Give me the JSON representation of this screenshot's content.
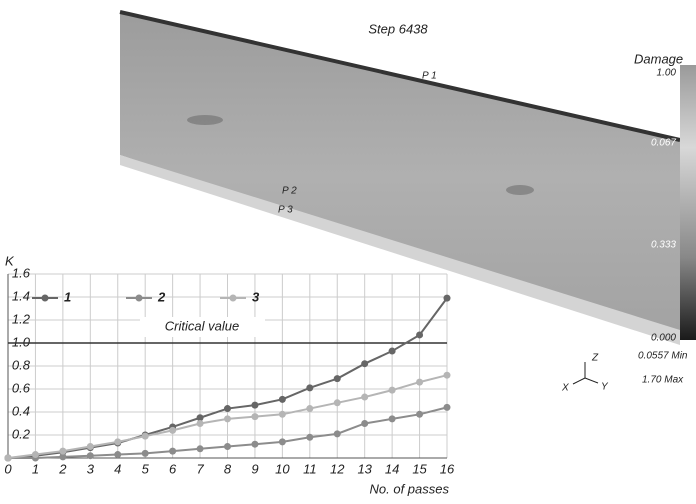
{
  "chart_data": {
    "type": "line",
    "y_label": "K",
    "x_label": "No. of passes",
    "x": [
      0,
      1,
      2,
      3,
      4,
      5,
      6,
      7,
      8,
      9,
      10,
      11,
      12,
      13,
      14,
      15,
      16
    ],
    "xlim": [
      0,
      16
    ],
    "xticks": [
      0,
      1,
      2,
      3,
      4,
      5,
      6,
      7,
      8,
      9,
      10,
      11,
      12,
      13,
      14,
      15,
      16
    ],
    "ylim": [
      0,
      1.6
    ],
    "yticks": [
      0.2,
      0.4,
      0.6,
      0.8,
      {
        "value": 1,
        "label": "1.0"
      },
      1.2,
      1.4,
      1.6
    ],
    "grid": true,
    "legend": "upper left",
    "critical_value": 1,
    "critical_label": "Critical value",
    "series": [
      {
        "name": "1",
        "color": "#666666",
        "values": [
          0,
          0.02,
          0.05,
          0.09,
          0.13,
          0.2,
          0.27,
          0.35,
          0.43,
          0.46,
          0.51,
          0.61,
          0.69,
          0.82,
          0.93,
          1.07,
          1.39
        ]
      },
      {
        "name": "2",
        "color": "#8c8c8c",
        "values": [
          0,
          0,
          0.01,
          0.02,
          0.03,
          0.04,
          0.06,
          0.08,
          0.1,
          0.12,
          0.14,
          0.18,
          0.21,
          0.3,
          0.34,
          0.38,
          0.44
        ]
      },
      {
        "name": "3",
        "color": "#b5b5b5",
        "values": [
          0,
          0.03,
          0.06,
          0.1,
          0.14,
          0.19,
          0.24,
          0.3,
          0.34,
          0.36,
          0.38,
          0.43,
          0.48,
          0.53,
          0.59,
          0.66,
          0.72
        ]
      }
    ]
  },
  "simulation": {
    "title": "Step 6438",
    "legend_title": "Damage",
    "colorbar_labels": [
      "1.00",
      "0.067",
      "0.333",
      "0.000"
    ],
    "min_label": "0.0557 Min",
    "max_label": "1.70 Max",
    "points": [
      "P 1",
      "P 2",
      "P 3"
    ],
    "axes": [
      "Z",
      "X",
      "Y"
    ]
  }
}
